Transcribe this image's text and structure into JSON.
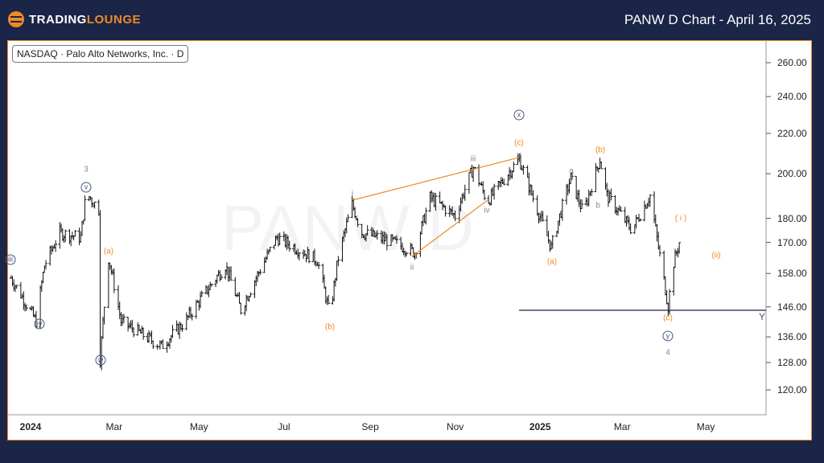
{
  "header": {
    "logo_part1": "TRADING",
    "logo_part2": "LOUNGE",
    "title": "PANW D Chart - April 16, 2025"
  },
  "badge": "NASDAQ · Palo Alto Networks, Inc. · D",
  "watermark": "PANW D",
  "chart_data": {
    "type": "ohlc",
    "title": "PANW D Chart - April 16, 2025",
    "ylim": [
      114,
      270
    ],
    "yscale": "log",
    "y_ticks": [
      260,
      240,
      220,
      200,
      180,
      170,
      158,
      146,
      136,
      128,
      120
    ],
    "y_tick_labels": [
      "260.00",
      "240.00",
      "220.00",
      "200.00",
      "180.00",
      "170.00",
      "158.00",
      "146.00",
      "136.00",
      "128.00",
      "120.00"
    ],
    "x_tick_labels": [
      "2024",
      "Mar",
      "May",
      "Jul",
      "Sep",
      "Nov",
      "2025",
      "Mar",
      "May"
    ],
    "x_tick_days": [
      0,
      60,
      121,
      182,
      244,
      305,
      366,
      425,
      485
    ],
    "price_path_day_price": [
      [
        -16,
        158
      ],
      [
        4,
        141
      ],
      [
        10,
        161
      ],
      [
        21,
        174
      ],
      [
        36,
        172
      ],
      [
        40,
        191
      ],
      [
        49,
        184
      ],
      [
        50,
        129
      ],
      [
        56,
        164
      ],
      [
        65,
        141
      ],
      [
        94,
        133
      ],
      [
        111,
        141
      ],
      [
        140,
        161
      ],
      [
        151,
        145
      ],
      [
        177,
        172
      ],
      [
        206,
        163
      ],
      [
        215,
        143
      ],
      [
        221,
        164
      ],
      [
        231,
        186
      ],
      [
        238,
        174
      ],
      [
        261,
        170
      ],
      [
        276,
        166
      ],
      [
        287,
        189
      ],
      [
        305,
        181
      ],
      [
        318,
        203
      ],
      [
        328,
        187
      ],
      [
        351,
        207
      ],
      [
        362,
        187
      ],
      [
        374,
        168
      ],
      [
        388,
        198
      ],
      [
        397,
        182
      ],
      [
        409,
        207
      ],
      [
        414,
        190
      ],
      [
        432,
        175
      ],
      [
        445,
        190
      ],
      [
        451,
        168
      ],
      [
        458,
        146
      ],
      [
        461,
        160
      ],
      [
        468,
        174
      ]
    ],
    "horizontal_line": {
      "price": 146,
      "label": "Y"
    },
    "wave_labels": [
      {
        "t": "3",
        "c": "gr"
      },
      {
        "t": "v",
        "c": "circ"
      },
      {
        "t": "iii",
        "c": "circ"
      },
      {
        "t": "iv",
        "c": "circ"
      },
      {
        "t": "w",
        "c": "circ"
      },
      {
        "t": "(a)",
        "c": "or"
      },
      {
        "t": "(b)",
        "c": "or"
      },
      {
        "t": "i",
        "c": "gr"
      },
      {
        "t": "ii",
        "c": "gr"
      },
      {
        "t": "iii",
        "c": "gr"
      },
      {
        "t": "iv",
        "c": "gr"
      },
      {
        "t": "v",
        "c": "gr"
      },
      {
        "t": "(c)",
        "c": "or"
      },
      {
        "t": "x",
        "c": "circ"
      },
      {
        "t": "(a)",
        "c": "or"
      },
      {
        "t": "a",
        "c": "gr"
      },
      {
        "t": "b",
        "c": "gr"
      },
      {
        "t": "(b)",
        "c": "or"
      },
      {
        "t": "(c)",
        "c": "or"
      },
      {
        "t": "y",
        "c": "circ"
      },
      {
        "t": "4",
        "c": "gr"
      },
      {
        "t": "( i )",
        "c": "or"
      },
      {
        "t": "(ii)",
        "c": "or"
      }
    ]
  },
  "colors": {
    "bg": "#1a2547",
    "accent": "#f08a24",
    "line": "#1a2547"
  }
}
